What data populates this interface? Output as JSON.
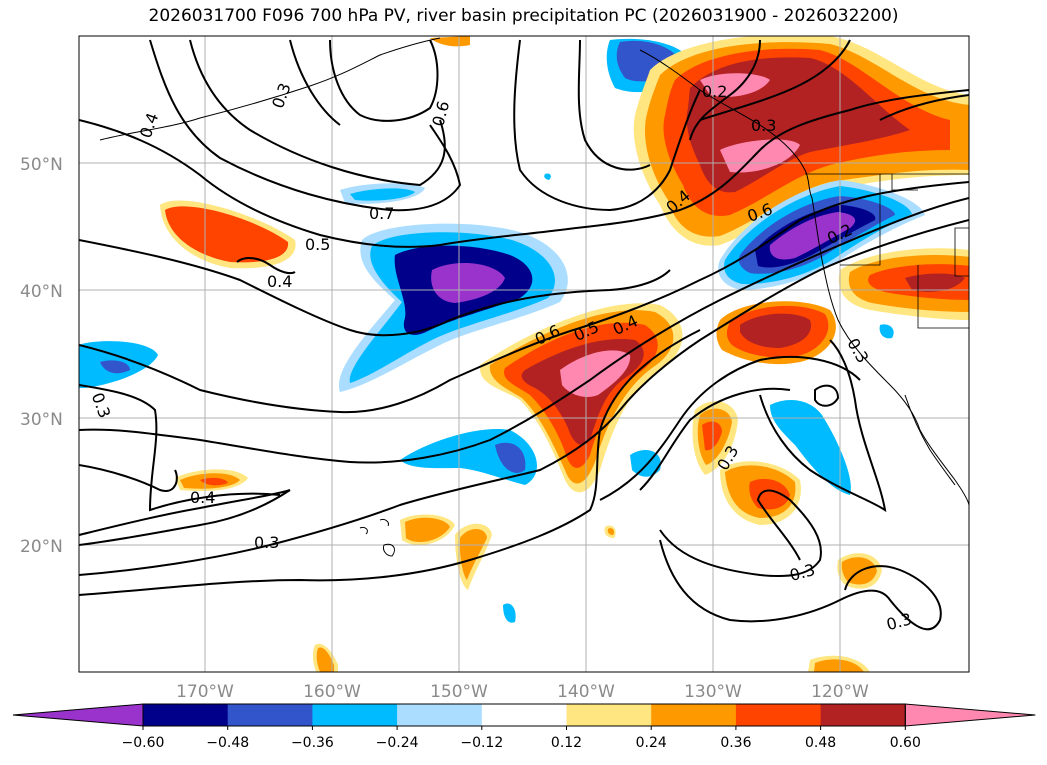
{
  "title": "2026031700 F096 700 hPa PV, river basin precipitation PC (2026031900 - 2026032200)",
  "lat_labels": [
    "50°N",
    "40°N",
    "30°N",
    "20°N"
  ],
  "lon_labels": [
    "170°W",
    "160°W",
    "150°W",
    "140°W",
    "130°W",
    "120°W"
  ],
  "colorbar": {
    "tick_labels": [
      "−0.60",
      "−0.48",
      "−0.36",
      "−0.24",
      "−0.12",
      "0.12",
      "0.24",
      "0.36",
      "0.48",
      "0.60"
    ],
    "colors": [
      "#9933cc",
      "#00008b",
      "#3355cc",
      "#00bbff",
      "#aaddff",
      "#ffffff",
      "#ffe680",
      "#ff9900",
      "#ff4400",
      "#b22222",
      "#ff88b0"
    ]
  },
  "contour_labels": [
    "0.7",
    "0.6",
    "0.5",
    "0.4",
    "0.6",
    "0.5",
    "0.4",
    "0.4",
    "0.3",
    "0.2",
    "0.6",
    "0.2",
    "0.3",
    "0.3",
    "0.3",
    "0.4",
    "0.3",
    "0.3",
    "0.3",
    "0.3",
    "0.4"
  ],
  "colors": {
    "contour": "#000000",
    "grid": "#b0b0b0",
    "tick_text": "#8a8a8a"
  }
}
